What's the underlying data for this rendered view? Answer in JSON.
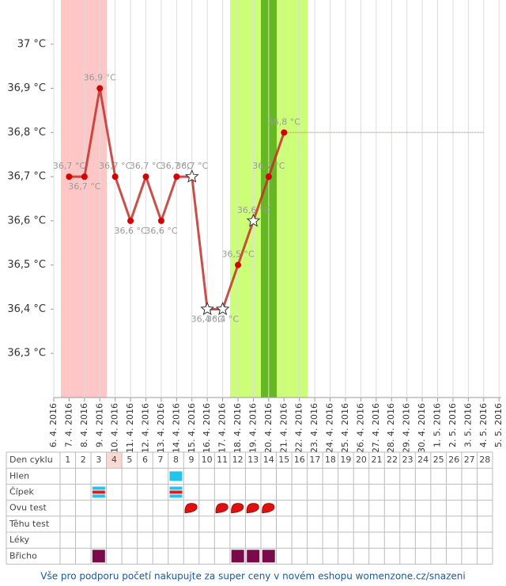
{
  "chart_data": {
    "type": "line",
    "categories": [
      "6. 4. 2016",
      "7. 4. 2016",
      "8. 4. 2016",
      "9. 4. 2016",
      "10. 4. 2016",
      "11. 4. 2016",
      "12. 4. 2016",
      "13. 4. 2016",
      "14. 4. 2016",
      "15. 4. 2016",
      "16. 4. 2016",
      "17. 4. 2016",
      "18. 4. 2016",
      "19. 4. 2016",
      "20. 4. 2016",
      "21. 4. 2016",
      "22. 4. 2016",
      "23. 4. 2016",
      "24. 4. 2016",
      "25. 4. 2016",
      "26. 4. 2016",
      "27. 4. 2016",
      "28. 4. 2016",
      "29. 4. 2016",
      "30. 4. 2016",
      "1. 5. 2016",
      "2. 5. 2016",
      "3. 5. 2016",
      "4. 5. 2016",
      "5. 5. 2016"
    ],
    "series": [
      {
        "color": "#c0302a",
        "values": [
          null,
          36.7,
          36.7,
          36.9,
          36.7,
          36.6,
          36.7,
          36.6,
          36.7,
          36.7,
          36.4,
          36.4,
          36.5,
          36.6,
          36.7,
          36.8,
          null,
          null,
          null,
          null,
          null,
          null,
          null,
          null,
          null,
          null,
          null,
          null,
          null,
          null
        ],
        "value_labels": [
          null,
          "36,7 °C",
          "36,7 °C",
          "36,9 °C",
          "36,7 °C",
          "36,6 °C",
          "36,7 °C",
          "36,6 °C",
          "36,7 °C",
          "36,7 °C",
          "36,4 °C",
          "36,4 °C",
          "36,5 °C",
          "36,6 °C",
          "36,7 °C",
          "36,8 °C",
          null,
          null,
          null,
          null,
          null,
          null,
          null,
          null,
          null,
          null,
          null,
          null,
          null,
          null
        ],
        "markers": [
          null,
          "circle",
          "circle",
          "circle",
          "circle",
          "circle",
          "circle",
          "circle",
          "circle",
          "star",
          "star",
          "star",
          "circle",
          "star",
          "circle",
          "circle",
          null,
          null,
          null,
          null,
          null,
          null,
          null,
          null,
          null,
          null,
          null,
          null,
          null,
          null
        ]
      },
      {
        "color": "#e08a8a",
        "dotted": true,
        "values": [
          null,
          null,
          null,
          null,
          null,
          null,
          null,
          null,
          null,
          null,
          null,
          null,
          null,
          null,
          null,
          36.8,
          36.8,
          36.8,
          36.8,
          36.8,
          36.8,
          36.8,
          36.8,
          36.8,
          36.8,
          36.8,
          36.8,
          36.8,
          36.8,
          null
        ]
      }
    ],
    "ylim": [
      36.2,
      37.1
    ],
    "yticks": [
      {
        "value": 36.3,
        "label": "36,3 °C"
      },
      {
        "value": 36.4,
        "label": "36,4 °C"
      },
      {
        "value": 36.5,
        "label": "36,5 °C"
      },
      {
        "value": 36.6,
        "label": "36,6 °C"
      },
      {
        "value": 36.7,
        "label": "36,7 °C"
      },
      {
        "value": 36.8,
        "label": "36,8 °C"
      },
      {
        "value": 36.9,
        "label": "36,9 °C"
      },
      {
        "value": 37,
        "label": "37 °C"
      }
    ],
    "grid": true
  },
  "table": {
    "header": "Den cyklu",
    "days": [
      1,
      2,
      3,
      4,
      5,
      6,
      7,
      8,
      9,
      10,
      11,
      12,
      13,
      14,
      15,
      16,
      17,
      18,
      19,
      20,
      21,
      22,
      23,
      24,
      25,
      26,
      27,
      28
    ],
    "highlight_day": 4,
    "rows": [
      {
        "label": "Hlen",
        "icon": "square-cyan",
        "days": [
          8
        ]
      },
      {
        "label": "Čípek",
        "icon": "stripes",
        "days": [
          3,
          8
        ]
      },
      {
        "label": "Ovu test",
        "icon": "drop",
        "days": [
          9,
          11,
          12,
          13,
          14
        ]
      },
      {
        "label": "Těhu test",
        "icon": "none",
        "days": []
      },
      {
        "label": "Léky",
        "icon": "none",
        "days": []
      },
      {
        "label": "Břicho",
        "icon": "square-purple",
        "days": [
          3,
          12,
          13,
          14
        ]
      }
    ]
  },
  "footer": "Vše pro podporu početí nakupujte za super ceny v novém eshopu womenzone.cz/snazeni"
}
